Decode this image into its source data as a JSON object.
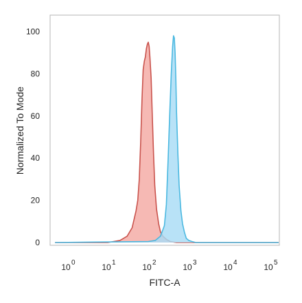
{
  "chart_data": {
    "type": "area",
    "title": "",
    "xlabel": "FITC-A",
    "ylabel": "Normalized To Mode",
    "x_scale": "log",
    "xlim": [
      0.5,
      200000
    ],
    "ylim": [
      0,
      100
    ],
    "grid": false,
    "legend": "none",
    "y_ticks": [
      0,
      20,
      40,
      60,
      80,
      100
    ],
    "x_ticks": [
      {
        "base": "10",
        "exp": "0",
        "value": 1
      },
      {
        "base": "10",
        "exp": "1",
        "value": 10
      },
      {
        "base": "10",
        "exp": "2",
        "value": 100
      },
      {
        "base": "10",
        "exp": "3",
        "value": 1000
      },
      {
        "base": "10",
        "exp": "4",
        "value": 10000
      },
      {
        "base": "10",
        "exp": "5",
        "value": 100000
      }
    ],
    "series": [
      {
        "color_fill": "#f4aaa3",
        "color_line": "#c9524c",
        "x": [
          0.5,
          10,
          20,
          30,
          40,
          50,
          55,
          60,
          65,
          70,
          75,
          80,
          85,
          90,
          95,
          100,
          105,
          110,
          118,
          125,
          135,
          145,
          160,
          180,
          200,
          230,
          280,
          350,
          500,
          700,
          200000
        ],
        "y": [
          0,
          0,
          1,
          3,
          7,
          15,
          20,
          30,
          48,
          68,
          82,
          86,
          88,
          92,
          94,
          95,
          93,
          88,
          78,
          62,
          42,
          27,
          16,
          9,
          5,
          3,
          1.5,
          0.5,
          0,
          0,
          0
        ]
      },
      {
        "color_fill": "#a8dcf5",
        "color_line": "#4ab8e0",
        "x": [
          0.5,
          100,
          150,
          200,
          250,
          280,
          310,
          340,
          370,
          400,
          420,
          440,
          460,
          480,
          500,
          540,
          580,
          640,
          700,
          780,
          870,
          1000,
          1200,
          1500,
          200000
        ],
        "y": [
          0,
          0.5,
          1,
          3,
          8,
          18,
          40,
          62,
          80,
          93,
          98,
          97,
          90,
          78,
          62,
          42,
          27,
          15,
          9,
          5,
          2,
          1,
          0.5,
          0,
          0
        ]
      }
    ]
  }
}
